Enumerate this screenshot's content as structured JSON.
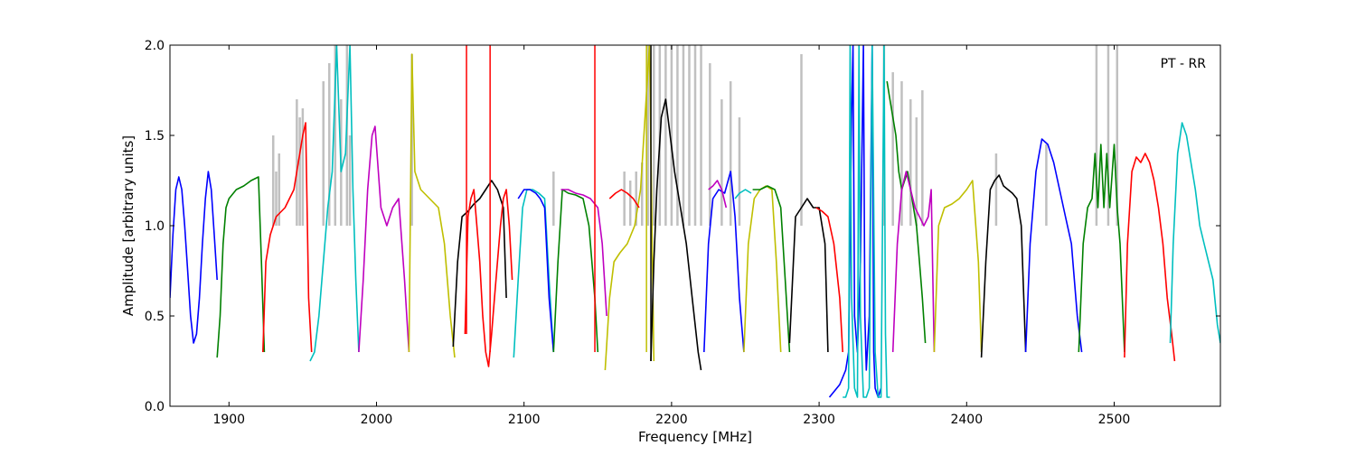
{
  "chart_data": {
    "type": "line",
    "title": "",
    "annotation": "PT - RR",
    "xlabel": "Frequency [MHz]",
    "ylabel": "Amplitude [arbitrary units]",
    "xlim": [
      1860,
      2572
    ],
    "ylim": [
      0.0,
      2.0
    ],
    "x_ticks": [
      1900,
      2000,
      2100,
      2200,
      2300,
      2400,
      2500
    ],
    "x_tick_labels": [
      "1900",
      "2000",
      "2100",
      "2200",
      "2300",
      "2400",
      "2500"
    ],
    "y_ticks": [
      0.0,
      0.5,
      1.0,
      1.5,
      2.0
    ],
    "y_tick_labels": [
      "0.0",
      "0.5",
      "1.0",
      "1.5",
      "2.0"
    ],
    "grid": false,
    "background_color": "#c0c0c0",
    "series": [
      {
        "color": "#0000ff",
        "x": [
          1860,
          1862,
          1864,
          1866,
          1868,
          1870,
          1872,
          1874,
          1876,
          1878,
          1880,
          1882,
          1884,
          1886,
          1888,
          1890,
          1892
        ],
        "y": [
          0.6,
          0.95,
          1.2,
          1.27,
          1.2,
          1.0,
          0.75,
          0.5,
          0.35,
          0.4,
          0.6,
          0.9,
          1.15,
          1.3,
          1.2,
          0.95,
          0.7
        ]
      },
      {
        "color": "#008000",
        "x": [
          1892,
          1894,
          1896,
          1898,
          1900,
          1905,
          1910,
          1915,
          1920,
          1922,
          1924
        ],
        "y": [
          0.27,
          0.5,
          0.9,
          1.1,
          1.15,
          1.2,
          1.22,
          1.25,
          1.27,
          0.8,
          0.3
        ]
      },
      {
        "color": "#ff0000",
        "x": [
          1923,
          1925,
          1928,
          1932,
          1938,
          1944,
          1950,
          1952,
          1954,
          1956
        ],
        "y": [
          0.3,
          0.8,
          0.95,
          1.05,
          1.1,
          1.2,
          1.5,
          1.57,
          0.6,
          0.3
        ]
      },
      {
        "color": "#00bfbf",
        "x": [
          1955,
          1958,
          1961,
          1964,
          1967,
          1970,
          1973,
          1976,
          1979,
          1982,
          1984,
          1986,
          1988
        ],
        "y": [
          0.25,
          0.3,
          0.5,
          0.8,
          1.1,
          1.3,
          2.0,
          1.3,
          1.4,
          2.0,
          1.2,
          0.7,
          0.3
        ]
      },
      {
        "color": "#bf00bf",
        "x": [
          1988,
          1991,
          1994,
          1997,
          1999,
          2003,
          2007,
          2011,
          2015,
          2019,
          2022
        ],
        "y": [
          0.3,
          0.7,
          1.2,
          1.5,
          1.55,
          1.1,
          1.0,
          1.1,
          1.15,
          0.7,
          0.3
        ]
      },
      {
        "color": "#bfbf00",
        "x": [
          2022,
          2024,
          2026,
          2030,
          2036,
          2042,
          2046,
          2050,
          2053
        ],
        "y": [
          0.3,
          1.95,
          1.3,
          1.2,
          1.15,
          1.1,
          0.9,
          0.5,
          0.27
        ]
      },
      {
        "color": "#000000",
        "x": [
          2052,
          2055,
          2058,
          2062,
          2066,
          2070,
          2074,
          2078,
          2082,
          2086,
          2088
        ],
        "y": [
          0.33,
          0.8,
          1.05,
          1.08,
          1.12,
          1.15,
          1.2,
          1.25,
          1.2,
          1.1,
          0.6
        ]
      },
      {
        "color": "#ff0000",
        "x": [
          2060,
          2062,
          2064,
          2066,
          2068,
          2070,
          2072,
          2074,
          2076,
          2078,
          2080,
          2082,
          2084,
          2086,
          2088,
          2090,
          2092
        ],
        "y": [
          0.4,
          1.05,
          1.15,
          1.2,
          1.0,
          0.8,
          0.5,
          0.3,
          0.22,
          0.4,
          0.6,
          0.8,
          1.0,
          1.15,
          1.2,
          1.0,
          0.7
        ]
      },
      {
        "color": "#00bfbf",
        "x": [
          2093,
          2096,
          2099,
          2102,
          2106,
          2110,
          2114,
          2117,
          2120
        ],
        "y": [
          0.27,
          0.7,
          1.1,
          1.2,
          1.2,
          1.18,
          1.15,
          0.7,
          0.3
        ]
      },
      {
        "color": "#0000ff",
        "x": [
          2096,
          2100,
          2104,
          2108,
          2111,
          2114,
          2117,
          2120
        ],
        "y": [
          1.15,
          1.2,
          1.2,
          1.18,
          1.15,
          1.1,
          0.6,
          0.3
        ]
      },
      {
        "color": "#008000",
        "x": [
          2120,
          2123,
          2126,
          2130,
          2135,
          2140,
          2144,
          2148,
          2150
        ],
        "y": [
          0.3,
          0.8,
          1.2,
          1.18,
          1.17,
          1.15,
          1.0,
          0.6,
          0.3
        ]
      },
      {
        "color": "#bf00bf",
        "x": [
          2125,
          2130,
          2135,
          2140,
          2145,
          2150,
          2153,
          2156
        ],
        "y": [
          1.2,
          1.2,
          1.18,
          1.17,
          1.15,
          1.1,
          0.9,
          0.5
        ]
      },
      {
        "color": "#bfbf00",
        "x": [
          2155,
          2158,
          2161,
          2165,
          2170,
          2175,
          2179,
          2182,
          2185,
          2188
        ],
        "y": [
          0.2,
          0.6,
          0.8,
          0.85,
          0.9,
          1.0,
          1.2,
          1.6,
          2.0,
          0.25
        ]
      },
      {
        "color": "#ff0000",
        "x": [
          2158,
          2162,
          2166,
          2170,
          2174,
          2178
        ],
        "y": [
          1.15,
          1.18,
          1.2,
          1.18,
          1.15,
          1.1
        ]
      },
      {
        "color": "#000000",
        "x": [
          2186,
          2188,
          2190,
          2193,
          2196,
          2199,
          2202,
          2206,
          2210,
          2214,
          2218,
          2220
        ],
        "y": [
          0.25,
          0.8,
          1.2,
          1.6,
          1.7,
          1.5,
          1.3,
          1.1,
          0.9,
          0.6,
          0.3,
          0.2
        ]
      },
      {
        "color": "#0000ff",
        "x": [
          2222,
          2225,
          2228,
          2232,
          2236,
          2240,
          2243,
          2246,
          2249
        ],
        "y": [
          0.3,
          0.9,
          1.15,
          1.2,
          1.18,
          1.3,
          1.05,
          0.6,
          0.3
        ]
      },
      {
        "color": "#bf00bf",
        "x": [
          2225,
          2228,
          2231,
          2234,
          2237
        ],
        "y": [
          1.2,
          1.22,
          1.25,
          1.2,
          1.1
        ]
      },
      {
        "color": "#00bfbf",
        "x": [
          2243,
          2246,
          2250,
          2254
        ],
        "y": [
          1.15,
          1.18,
          1.2,
          1.18
        ]
      },
      {
        "color": "#bfbf00",
        "x": [
          2249,
          2252,
          2256,
          2260,
          2264,
          2268,
          2271,
          2274
        ],
        "y": [
          0.3,
          0.9,
          1.15,
          1.2,
          1.22,
          1.2,
          0.8,
          0.3
        ]
      },
      {
        "color": "#008000",
        "x": [
          2255,
          2260,
          2265,
          2270,
          2274,
          2277,
          2280
        ],
        "y": [
          1.2,
          1.2,
          1.22,
          1.2,
          1.1,
          0.7,
          0.3
        ]
      },
      {
        "color": "#000000",
        "x": [
          2280,
          2284,
          2288,
          2292,
          2296,
          2300,
          2304,
          2306
        ],
        "y": [
          0.35,
          1.05,
          1.1,
          1.15,
          1.1,
          1.1,
          0.9,
          0.3
        ]
      },
      {
        "color": "#ff0000",
        "x": [
          2298,
          2302,
          2306,
          2310,
          2314,
          2316
        ],
        "y": [
          1.1,
          1.08,
          1.05,
          0.9,
          0.6,
          0.3
        ]
      },
      {
        "color": "#0000ff",
        "x": [
          2307,
          2310,
          2314,
          2318,
          2320,
          2322,
          2323,
          2324,
          2326,
          2328,
          2330,
          2331,
          2332,
          2334,
          2336,
          2337,
          2338,
          2340,
          2342
        ],
        "y": [
          0.05,
          0.08,
          0.12,
          0.2,
          0.3,
          1.6,
          2.0,
          0.5,
          0.3,
          0.8,
          2.0,
          0.5,
          0.2,
          0.5,
          2.0,
          0.3,
          0.1,
          0.05,
          0.1
        ]
      },
      {
        "color": "#00bfbf",
        "x": [
          2316,
          2318,
          2320,
          2321,
          2322,
          2324,
          2326,
          2327,
          2328,
          2330,
          2332,
          2334,
          2336,
          2338,
          2340,
          2342,
          2344,
          2345,
          2346,
          2348
        ],
        "y": [
          0.05,
          0.05,
          0.1,
          2.0,
          0.6,
          0.1,
          0.05,
          2.0,
          0.5,
          0.05,
          0.05,
          0.1,
          2.0,
          0.3,
          0.05,
          0.05,
          2.0,
          0.4,
          0.05,
          0.05
        ]
      },
      {
        "color": "#008000",
        "x": [
          2346,
          2348,
          2350,
          2352,
          2354,
          2356,
          2358,
          2360,
          2362,
          2364,
          2366,
          2368,
          2370,
          2372
        ],
        "y": [
          1.8,
          1.7,
          1.6,
          1.5,
          1.3,
          1.2,
          1.25,
          1.3,
          1.2,
          1.1,
          1.0,
          0.8,
          0.6,
          0.35
        ]
      },
      {
        "color": "#bf00bf",
        "x": [
          2350,
          2353,
          2356,
          2359,
          2362,
          2365,
          2368,
          2371,
          2374,
          2376,
          2378
        ],
        "y": [
          0.3,
          0.9,
          1.2,
          1.3,
          1.2,
          1.1,
          1.05,
          1.0,
          1.05,
          1.2,
          0.3
        ]
      },
      {
        "color": "#bfbf00",
        "x": [
          2378,
          2381,
          2385,
          2390,
          2395,
          2400,
          2404,
          2408,
          2410
        ],
        "y": [
          0.3,
          1.0,
          1.1,
          1.12,
          1.15,
          1.2,
          1.25,
          0.8,
          0.3
        ]
      },
      {
        "color": "#000000",
        "x": [
          2410,
          2413,
          2416,
          2419,
          2422,
          2425,
          2428,
          2431,
          2434,
          2437,
          2440
        ],
        "y": [
          0.27,
          0.8,
          1.2,
          1.25,
          1.28,
          1.22,
          1.2,
          1.18,
          1.15,
          1.0,
          0.3
        ]
      },
      {
        "color": "#0000ff",
        "x": [
          2440,
          2443,
          2447,
          2451,
          2455,
          2459,
          2463,
          2467,
          2471,
          2475,
          2478
        ],
        "y": [
          0.3,
          0.9,
          1.3,
          1.48,
          1.45,
          1.35,
          1.2,
          1.05,
          0.9,
          0.5,
          0.3
        ]
      },
      {
        "color": "#008000",
        "x": [
          2476,
          2479,
          2482,
          2485,
          2487,
          2489,
          2491,
          2493,
          2495,
          2497,
          2500,
          2502,
          2504,
          2507
        ],
        "y": [
          0.3,
          0.9,
          1.1,
          1.15,
          1.4,
          1.1,
          1.45,
          1.1,
          1.4,
          1.1,
          1.45,
          1.1,
          0.9,
          0.3
        ]
      },
      {
        "color": "#ff0000",
        "x": [
          2507,
          2509,
          2512,
          2515,
          2518,
          2521,
          2524,
          2527,
          2530,
          2533,
          2536,
          2539,
          2541
        ],
        "y": [
          0.27,
          0.9,
          1.3,
          1.38,
          1.35,
          1.4,
          1.35,
          1.25,
          1.1,
          0.9,
          0.6,
          0.4,
          0.25
        ]
      },
      {
        "color": "#00bfbf",
        "x": [
          2538,
          2540,
          2543,
          2546,
          2549,
          2552,
          2555,
          2558,
          2561,
          2564,
          2567,
          2570,
          2572
        ],
        "y": [
          0.35,
          0.9,
          1.4,
          1.57,
          1.5,
          1.35,
          1.2,
          1.0,
          0.9,
          0.8,
          0.7,
          0.45,
          0.35
        ]
      }
    ],
    "background_x": [
      1930,
      1932,
      1934,
      1946,
      1948,
      1950,
      1964,
      1968,
      1972,
      1976,
      1980,
      1982,
      2024,
      2120,
      2168,
      2172,
      2176,
      2180,
      2184,
      2188,
      2192,
      2196,
      2200,
      2204,
      2208,
      2212,
      2216,
      2220,
      2226,
      2234,
      2240,
      2246,
      2288,
      2344,
      2350,
      2356,
      2362,
      2366,
      2370,
      2420,
      2454,
      2488,
      2496,
      2502
    ],
    "background_y": [
      1.5,
      1.3,
      1.4,
      1.7,
      1.6,
      1.65,
      1.8,
      1.9,
      2.0,
      1.7,
      2.0,
      1.5,
      1.95,
      1.3,
      1.3,
      1.25,
      1.3,
      1.35,
      2.0,
      2.0,
      2.0,
      2.0,
      2.0,
      2.0,
      2.0,
      2.0,
      2.0,
      2.0,
      1.9,
      1.7,
      1.8,
      1.6,
      1.95,
      2.0,
      1.85,
      1.8,
      1.7,
      1.6,
      1.75,
      1.4,
      1.45,
      2.0,
      2.0,
      2.0
    ],
    "vertical_spikes": [
      {
        "color": "#ff0000",
        "x": 2061,
        "y_low": 0.4,
        "y_high": 2.0
      },
      {
        "color": "#ff0000",
        "x": 2077,
        "y_low": 0.3,
        "y_high": 2.0
      },
      {
        "color": "#ff0000",
        "x": 2148,
        "y_low": 0.3,
        "y_high": 2.0
      },
      {
        "color": "#bfbf00",
        "x": 2183,
        "y_low": 0.3,
        "y_high": 2.0
      },
      {
        "color": "#000000",
        "x": 2186,
        "y_low": 0.25,
        "y_high": 2.0
      }
    ]
  }
}
